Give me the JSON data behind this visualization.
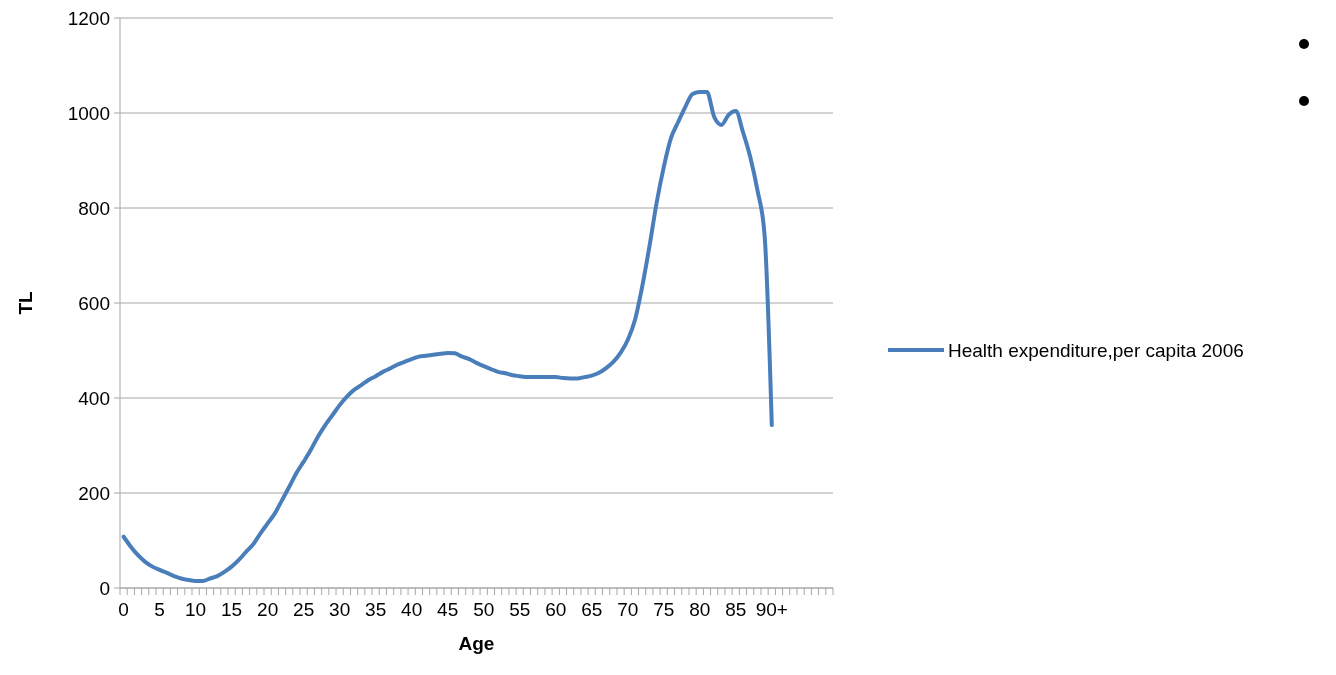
{
  "chart_data": {
    "type": "line",
    "xlabel": "Age",
    "ylabel": "TL",
    "categories": [
      "0",
      null,
      null,
      null,
      null,
      "5",
      null,
      null,
      null,
      null,
      "10",
      null,
      null,
      null,
      null,
      "15",
      null,
      null,
      null,
      null,
      "20",
      null,
      null,
      null,
      null,
      "25",
      null,
      null,
      null,
      null,
      "30",
      null,
      null,
      null,
      null,
      "35",
      null,
      null,
      null,
      null,
      "40",
      null,
      null,
      null,
      null,
      "45",
      null,
      null,
      null,
      null,
      "50",
      null,
      null,
      null,
      null,
      "55",
      null,
      null,
      null,
      null,
      "60",
      null,
      null,
      null,
      null,
      "65",
      null,
      null,
      null,
      null,
      "70",
      null,
      null,
      null,
      null,
      "75",
      null,
      null,
      null,
      null,
      "80",
      null,
      null,
      null,
      null,
      "85",
      null,
      null,
      null,
      null,
      "90+",
      null,
      null,
      null,
      null,
      null,
      null,
      null,
      null
    ],
    "series": [
      {
        "name": "Health expenditure,per capita 2006",
        "color": "#4a7ebb",
        "values": [
          108,
          87,
          69,
          55,
          45,
          38,
          32,
          25,
          20,
          17,
          15,
          15,
          20,
          25,
          34,
          45,
          59,
          76,
          92,
          115,
          136,
          157,
          185,
          213,
          242,
          266,
          291,
          319,
          343,
          364,
          385,
          403,
          417,
          427,
          438,
          446,
          455,
          462,
          470,
          476,
          482,
          487,
          489,
          491,
          493,
          495,
          494,
          487,
          482,
          474,
          467,
          461,
          455,
          452,
          448,
          446,
          444,
          444,
          444,
          444,
          444,
          442,
          441,
          441,
          444,
          447,
          453,
          463,
          476,
          495,
          522,
          564,
          634,
          718,
          810,
          886,
          947,
          981,
          1013,
          1040,
          1044,
          1044,
          992,
          975,
          996,
          1004,
          960,
          908,
          838,
          743,
          343,
          null,
          null,
          null,
          null,
          null,
          null,
          null,
          null
        ]
      }
    ],
    "ylim": [
      0,
      1200
    ],
    "yticks": [
      0,
      200,
      400,
      600,
      800,
      1000,
      1200
    ],
    "grid": "y",
    "legend": "right",
    "marker": "none",
    "line_style": "solid"
  }
}
